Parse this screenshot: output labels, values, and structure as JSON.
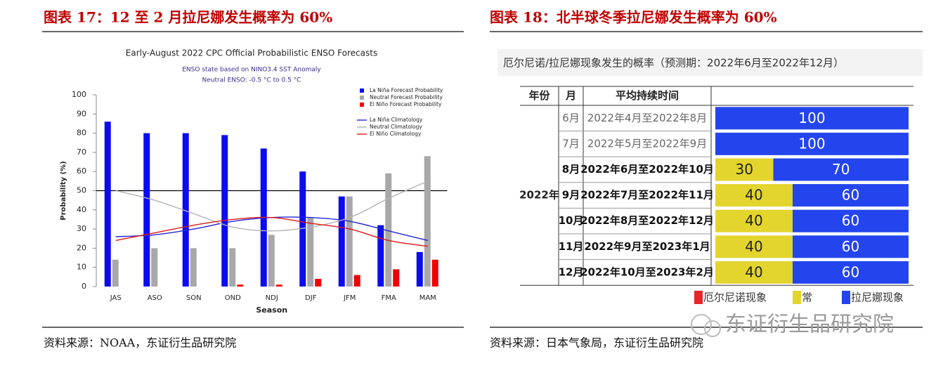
{
  "figures": [
    {
      "heading": "图表 17：12 至 2 月拉尼娜发生概率为 60%",
      "source": "资料来源：NOAA，东证衍生品研究院"
    },
    {
      "heading": "图表 18：北半球冬季拉尼娜发生概率为 60%",
      "source": "资料来源：日本气象局，东证衍生品研究院"
    }
  ],
  "watermark": "东证衍生品研究院",
  "chart_data": [
    {
      "type": "bar",
      "title": "Early-August 2022 CPC Official Probabilistic ENSO Forecasts",
      "subtitle": [
        "ENSO state based on NINO3.4 SST Anomaly",
        "Neutral ENSO: -0.5 °C to 0.5 °C"
      ],
      "xlabel": "Season",
      "ylabel": "Probability (%)",
      "categories": [
        "JAS",
        "ASO",
        "SON",
        "OND",
        "NDJ",
        "DJF",
        "JFM",
        "FMA",
        "MAM"
      ],
      "series": [
        {
          "name": "La Niña Forecast Probability",
          "type": "bar",
          "color": "#0b0bf0",
          "values": [
            86,
            80,
            80,
            79,
            72,
            60,
            47,
            32,
            18
          ]
        },
        {
          "name": "Neutral Forecast Probability",
          "type": "bar",
          "color": "#a8a8a8",
          "values": [
            14,
            20,
            20,
            20,
            27,
            36,
            47,
            59,
            68
          ]
        },
        {
          "name": "El Niño Forecast Probability",
          "type": "bar",
          "color": "#f00000",
          "values": [
            0,
            0,
            0,
            1,
            1,
            4,
            6,
            9,
            14
          ]
        },
        {
          "name": "La Niña Climatology",
          "type": "line",
          "color": "#2424d8",
          "values": [
            26,
            27,
            30,
            34,
            36,
            36,
            34,
            29,
            24
          ]
        },
        {
          "name": "Neutral Climatology",
          "type": "line",
          "color": "#b4b4b4",
          "values": [
            50,
            45,
            38,
            31,
            29,
            31,
            36,
            46,
            55
          ]
        },
        {
          "name": "El Niño Climatology",
          "type": "line",
          "color": "#e01818",
          "values": [
            24,
            28,
            32,
            35,
            36,
            33,
            30,
            24,
            21
          ]
        }
      ],
      "ylim": [
        0,
        100
      ],
      "yticks": [
        0,
        10,
        20,
        30,
        40,
        50,
        60,
        70,
        80,
        90,
        100
      ],
      "reference_line": 50,
      "grid": false,
      "legend": "upper right"
    },
    {
      "type": "table_bar",
      "title": "厄尔尼诺/拉尼娜现象发生的概率（预测期：2022年6月至2022年12月）",
      "columns": [
        "年份",
        "月",
        "平均持续时间"
      ],
      "year": "2022年",
      "categories": [
        "6月",
        "7月",
        "8月",
        "9月",
        "10月",
        "11月",
        "12月"
      ],
      "periods": [
        "2022年4月至2022年8月",
        "2022年5月至2022年9月",
        "2022年6月至2022年10月",
        "2022年7月至2022年11月",
        "2022年8月至2022年12月",
        "2022年9月至2023年1月",
        "2022年10月至2023年2月"
      ],
      "series": [
        {
          "name": "厄尔尼诺现象",
          "color": "#e8262a",
          "values": [
            0,
            0,
            0,
            0,
            0,
            0,
            0
          ]
        },
        {
          "name": "常",
          "color": "#e3d52e",
          "values": [
            0,
            0,
            30,
            40,
            40,
            40,
            40
          ]
        },
        {
          "name": "拉尼娜现象",
          "color": "#2445ee",
          "values": [
            100,
            100,
            70,
            60,
            60,
            60,
            60
          ]
        }
      ],
      "xlim": [
        0,
        100
      ],
      "legend": "bottom"
    }
  ]
}
